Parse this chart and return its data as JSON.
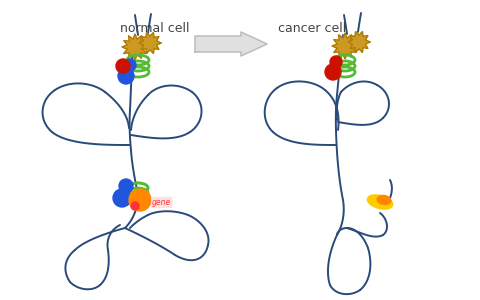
{
  "bg_color": "#ffffff",
  "dna_color": "#2a4a7a",
  "dna_lw": 1.4,
  "text_normal": "normal cell",
  "text_cancer": "cancer cell",
  "text_fontsize": 9,
  "text_color": "#444444",
  "gene_text": "gene",
  "gene_color": "#ff3333",
  "green_ring_color": "#55bb33",
  "blue_ball_color": "#2255dd",
  "orange_ball_color": "#ff8800",
  "red_ball_color": "#cc1100",
  "yellow_oval_color": "#ffcc00",
  "spike_color": "#aa7700",
  "spike_fill": "#cc9922",
  "arrow_fill": "#e0e0e0",
  "arrow_edge": "#bbbbbb"
}
